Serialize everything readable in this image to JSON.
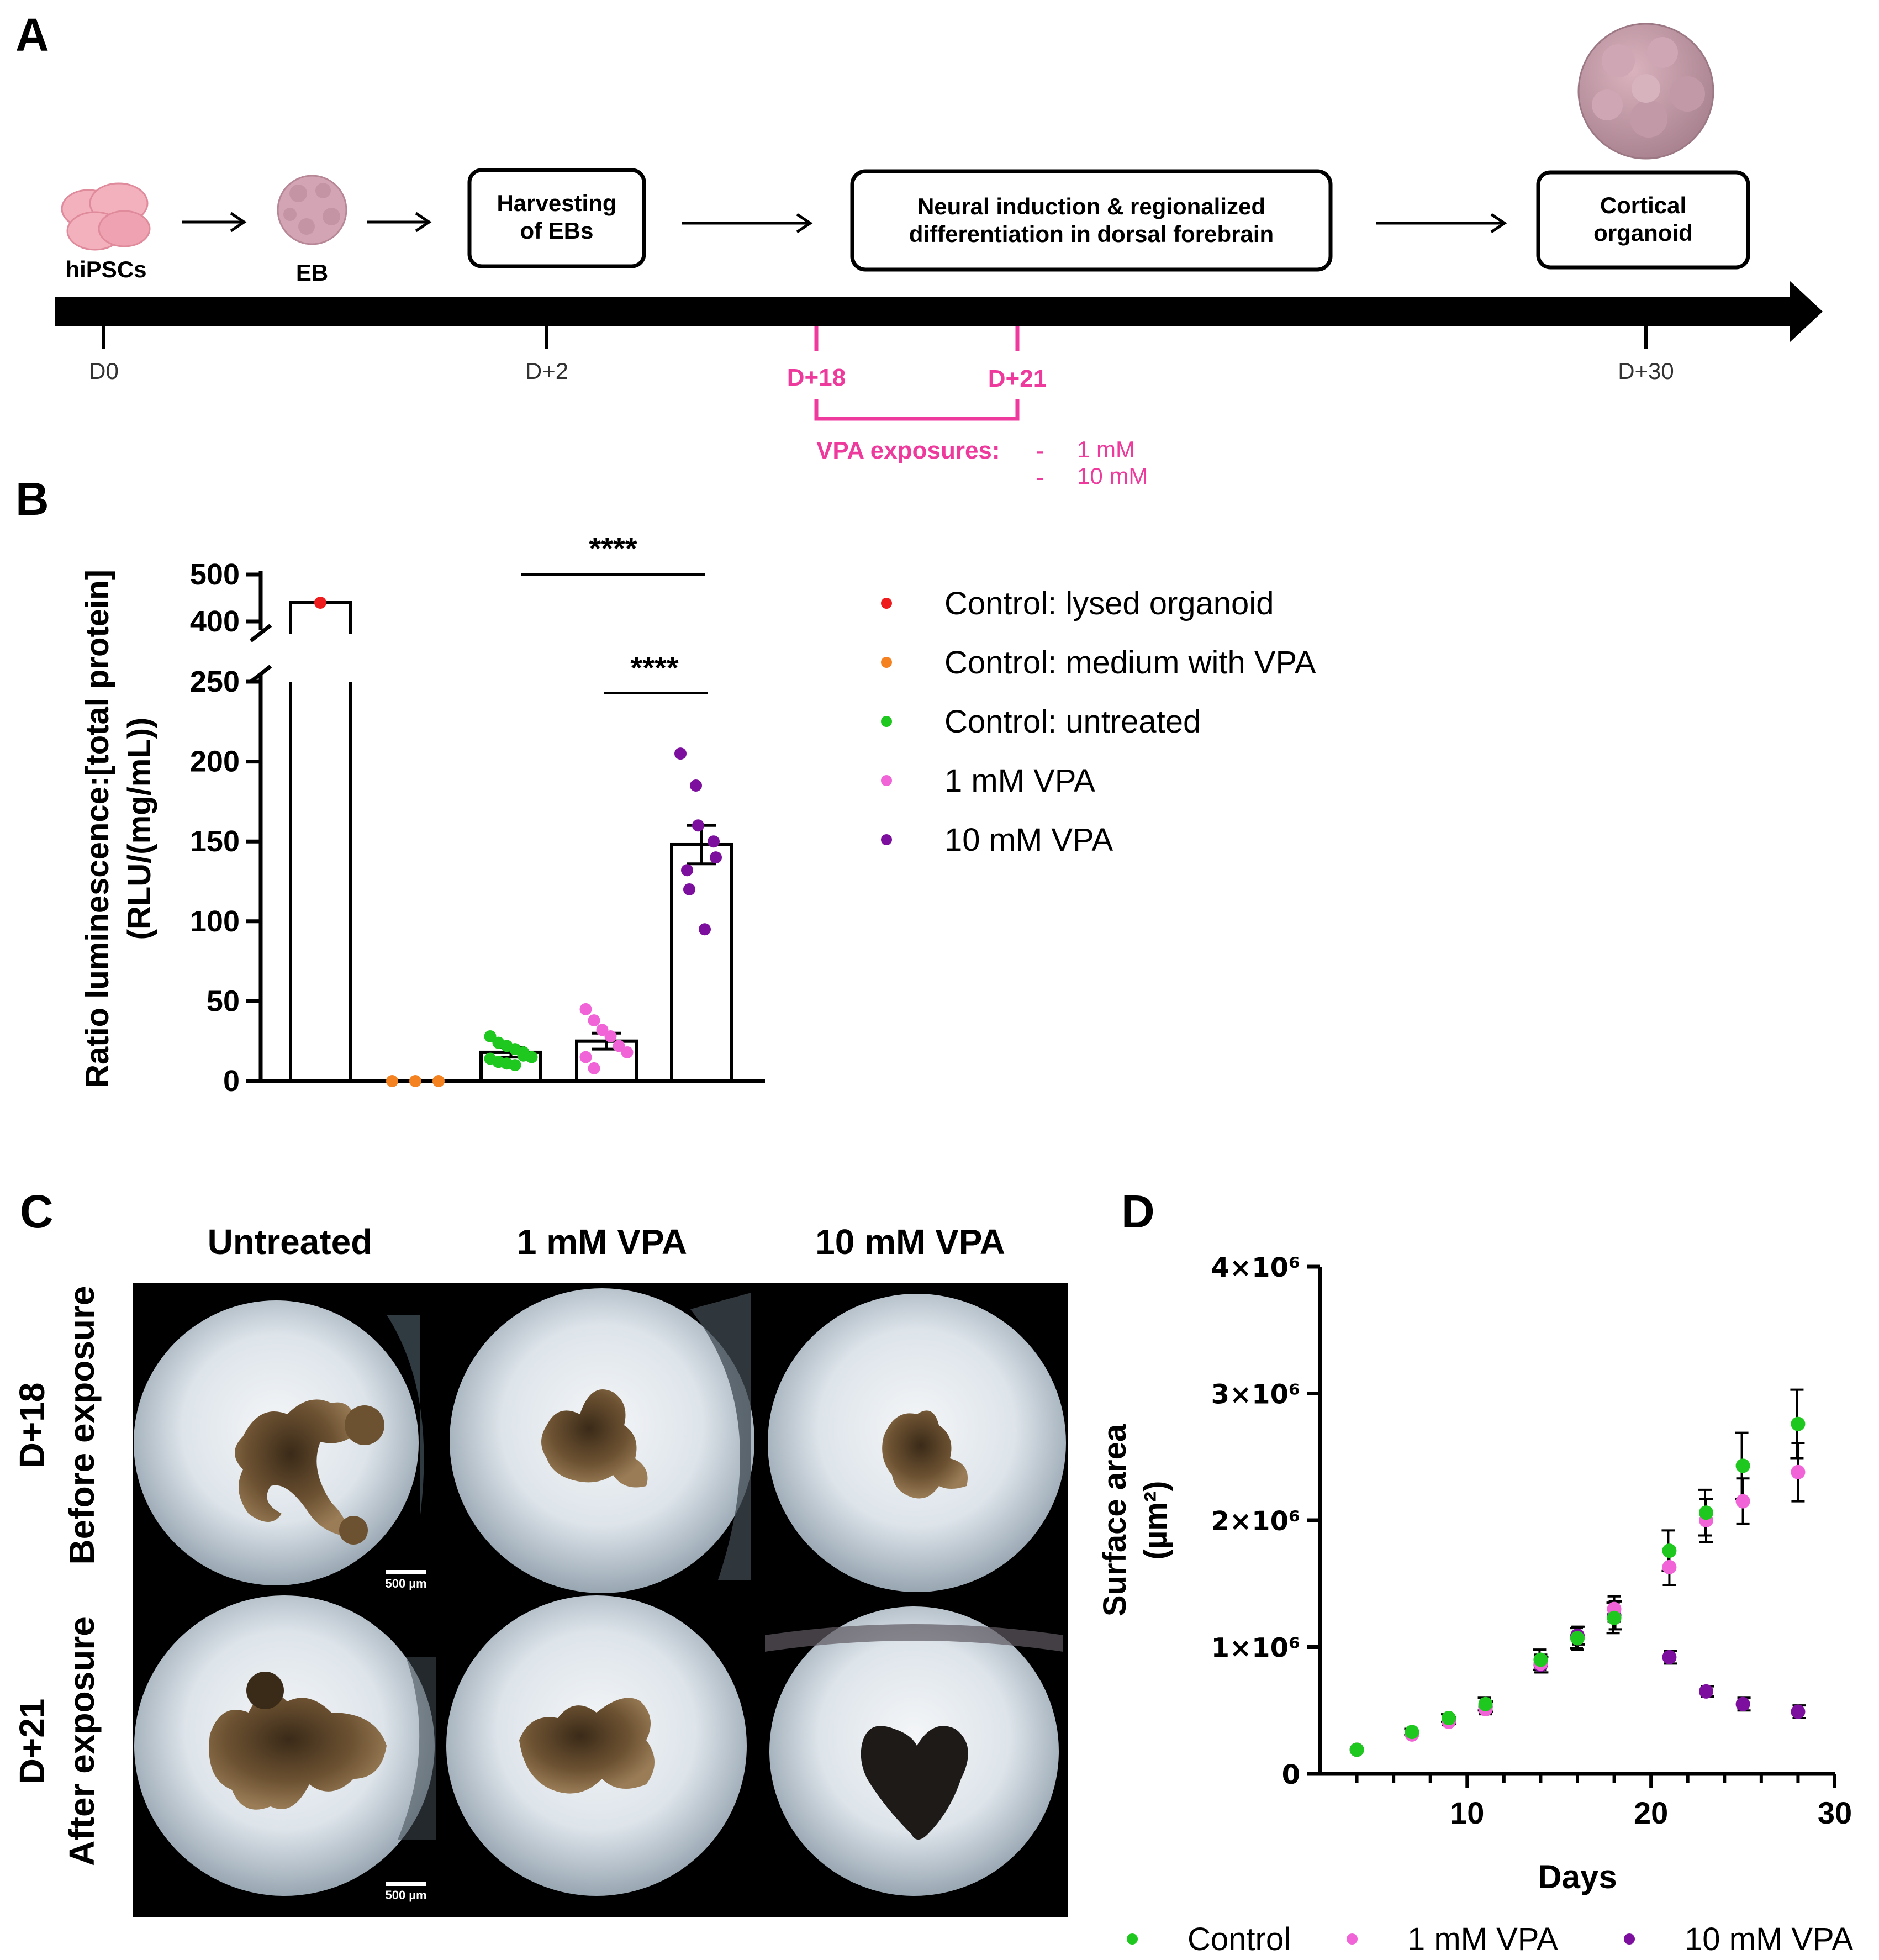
{
  "panel_labels": {
    "a": "A",
    "b": "B",
    "c": "C",
    "d": "D"
  },
  "panel_a": {
    "steps": {
      "hipsc": "hiPSCs",
      "eb": "EB",
      "harvest": [
        "Harvesting",
        "of EBs"
      ],
      "neural": [
        "Neural induction & regionalized",
        "differentiation in dorsal forebrain"
      ],
      "cortical": [
        "Cortical",
        "organoid"
      ]
    },
    "days": {
      "d0": "D0",
      "d2": "D+2",
      "d18": "D+18",
      "d21": "D+21",
      "d30": "D+30"
    },
    "vpa_label": "VPA exposures:",
    "vpa_doses": [
      "1 mM",
      "10 mM"
    ],
    "colors": {
      "accent": "#ee3a9c",
      "timeline": "#000000",
      "cell": "#f3b0bd",
      "eb": "#d2a4b4",
      "organoid": "#c69ca9"
    }
  },
  "chart_data": [
    {
      "type": "bar",
      "panel": "B",
      "ylabel": [
        "Ratio luminescence:[total protein]",
        "(RLU/(mg/mL))"
      ],
      "axis_break": {
        "lower": [
          0,
          250
        ],
        "upper": [
          400,
          500
        ]
      },
      "lower_ticks": [
        "0",
        "50",
        "100",
        "150",
        "200",
        "250"
      ],
      "upper_ticks": [
        "400",
        "500"
      ],
      "significance": [
        "****",
        "****"
      ],
      "legend": [
        {
          "label": "Control: lysed organoid",
          "color": "#ee1c1c"
        },
        {
          "label": "Control: medium with VPA",
          "color": "#f58220"
        },
        {
          "label": "Control: untreated",
          "color": "#1ec81e"
        },
        {
          "label": "1 mM VPA",
          "color": "#f064d8"
        },
        {
          "label": "10 mM VPA",
          "color": "#7d0f9e"
        }
      ],
      "groups": [
        {
          "name": "Control: lysed organoid",
          "mean": 440,
          "sem": 0,
          "points": [
            440
          ],
          "color": "#ee1c1c"
        },
        {
          "name": "Control: medium with VPA",
          "mean": 0,
          "sem": 0,
          "points": [
            0,
            0,
            0
          ],
          "color": "#f58220"
        },
        {
          "name": "Control: untreated",
          "mean": 18,
          "sem": 3,
          "points": [
            28,
            24,
            22,
            20,
            18,
            15,
            14,
            12,
            11,
            10,
            16
          ],
          "color": "#1ec81e"
        },
        {
          "name": "1 mM VPA",
          "mean": 25,
          "sem": 5,
          "points": [
            45,
            38,
            32,
            28,
            22,
            18,
            15,
            8
          ],
          "color": "#f064d8"
        },
        {
          "name": "10 mM VPA",
          "mean": 148,
          "sem": 12,
          "points": [
            205,
            185,
            160,
            150,
            140,
            132,
            120,
            95
          ],
          "color": "#7d0f9e"
        }
      ]
    },
    {
      "type": "scatter",
      "panel": "D",
      "xlabel": "Days",
      "ylabel": [
        "Surface area",
        "(µm²)"
      ],
      "xlim": [
        2,
        30
      ],
      "ylim": [
        0,
        4000000
      ],
      "xticks": [
        "10",
        "20",
        "30"
      ],
      "yticks": [
        "0",
        "1×10⁶",
        "2×10⁶",
        "3×10⁶",
        "4×10⁶"
      ],
      "x": [
        4,
        7,
        9,
        11,
        14,
        16,
        18,
        21,
        23,
        25,
        28
      ],
      "series": [
        {
          "name": "Control",
          "color": "#1ec81e",
          "values": [
            190000,
            330000,
            440000,
            550000,
            900000,
            1070000,
            1230000,
            1760000,
            2060000,
            2430000,
            2760000
          ],
          "errors": [
            15000,
            25000,
            30000,
            50000,
            80000,
            80000,
            120000,
            160000,
            180000,
            260000,
            270000
          ]
        },
        {
          "name": "1 mM VPA",
          "color": "#f064d8",
          "values": [
            190000,
            310000,
            410000,
            510000,
            870000,
            1070000,
            1300000,
            1630000,
            2000000,
            2150000,
            2380000
          ],
          "errors": [
            15000,
            20000,
            25000,
            40000,
            70000,
            90000,
            100000,
            140000,
            170000,
            180000,
            230000
          ]
        },
        {
          "name": "10 mM VPA",
          "color": "#7d0f9e",
          "values": [
            190000,
            320000,
            420000,
            530000,
            860000,
            1090000,
            1250000,
            920000,
            650000,
            550000,
            490000
          ],
          "errors": [
            15000,
            20000,
            25000,
            40000,
            60000,
            70000,
            110000,
            50000,
            40000,
            50000,
            50000
          ]
        }
      ],
      "legend": [
        "Control",
        "1 mM VPA",
        "10 mM VPA"
      ]
    }
  ],
  "panel_c": {
    "columns": [
      "Untreated",
      "1 mM VPA",
      "10 mM VPA"
    ],
    "rows": [
      {
        "day": "D+18",
        "desc": "Before exposure"
      },
      {
        "day": "D+21",
        "desc": "After exposure"
      }
    ],
    "scale_bar": "500 µm"
  }
}
